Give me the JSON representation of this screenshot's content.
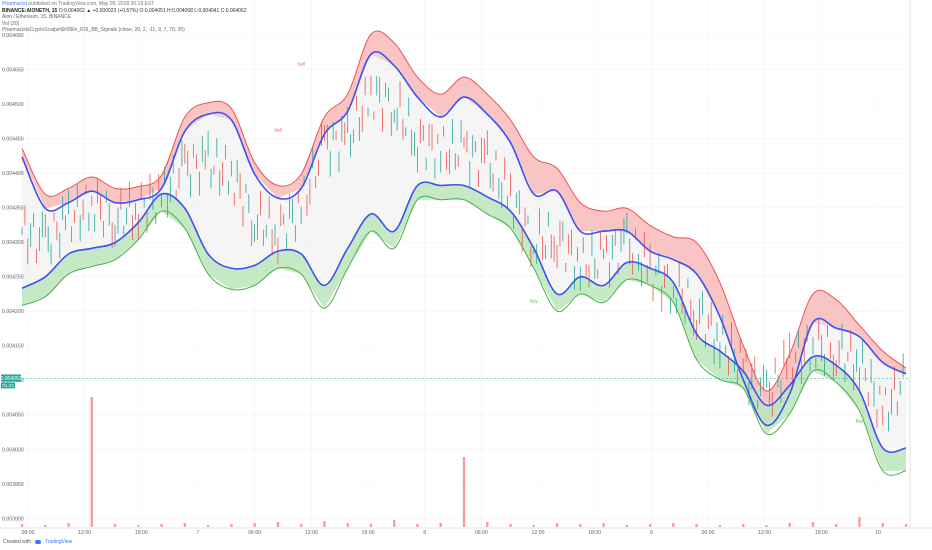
{
  "header": {
    "author": "Pharmacist",
    "published": "published on TradingView.com, May 09, 2018 20:19 EST",
    "symbol": "BINANCE:AIONETH, 15",
    "ohlc": "O:0.004062 ▲ +0.000023 (+0.57%) O:0.004051 H:0.004068 L:0.004041 C:0.004062",
    "pair": "Aion / Ethereum, 15, BINANCE",
    "volume": "Vol (20)",
    "indicator": "PharmacistsCryptoScalper$#05lin_RSI_BB_Signals (close, 20, 2, -11, 9, 7, 70, 35)"
  },
  "footer": {
    "created_with": "Created with",
    "brand": "TradingView"
  },
  "colors": {
    "upper_band": "#ef5350",
    "lower_band": "#4caf50",
    "inner_band": "#3f51f0",
    "band_fill": "#e8e8e8",
    "candle_up": "#26a69a",
    "candle_down": "#ef5350",
    "volume_bar": "#f4a0a0",
    "price_tag": "#26a69a"
  },
  "chart_data": {
    "type": "line",
    "x_ticks": [
      "08:00",
      "12:00",
      "18:00",
      "7",
      "06:00",
      "12:00",
      "18:00",
      "8",
      "06:00",
      "12:00",
      "18:00",
      "9",
      "06:00",
      "12:00",
      "18:00",
      "10"
    ],
    "y_ticks": [
      "0.004680",
      "0.004650",
      "0.004500",
      "0.004450",
      "0.004400",
      "0.004350",
      "0.004300",
      "0.004250",
      "0.004200",
      "0.004150",
      "0.004100",
      "0.004050",
      "0.004000",
      "0.003950",
      "0.003900"
    ],
    "ylim": [
      0.00387,
      0.00469
    ],
    "last_price_tag": "0.004062",
    "countdown_tag": "01:23",
    "signals": [
      {
        "label": "Sell",
        "x_index": 12,
        "price": 0.00461
      },
      {
        "label": "Sell",
        "x_index": 11,
        "price": 0.004495
      },
      {
        "label": "Buy",
        "x_index": 22,
        "price": 0.004195
      },
      {
        "label": "Buy",
        "x_index": 36,
        "price": 0.003985
      }
    ],
    "series": [
      {
        "name": "Upper Band",
        "values": [
          0.004465,
          0.004385,
          0.004395,
          0.004415,
          0.004395,
          0.004398,
          0.004418,
          0.00452,
          0.004545,
          0.004535,
          0.00444,
          0.0044,
          0.00442,
          0.00452,
          0.00456,
          0.004665,
          0.00465,
          0.00459,
          0.00456,
          0.00459,
          0.00456,
          0.004515,
          0.00445,
          0.00443,
          0.00437,
          0.004355,
          0.00436,
          0.00433,
          0.00431,
          0.0043,
          0.00423,
          0.00412,
          0.00404,
          0.004105,
          0.00421,
          0.0042,
          0.004155,
          0.00411,
          0.00408
        ]
      },
      {
        "name": "Basis",
        "values": [
          0.00445,
          0.00436,
          0.00437,
          0.00439,
          0.00437,
          0.004375,
          0.004395,
          0.004495,
          0.004525,
          0.004515,
          0.00442,
          0.004378,
          0.004395,
          0.00449,
          0.00453,
          0.00463,
          0.00461,
          0.004555,
          0.00452,
          0.004555,
          0.004525,
          0.004475,
          0.004385,
          0.00439,
          0.00432,
          0.00432,
          0.00432,
          0.004285,
          0.00427,
          0.004245,
          0.00417,
          0.00406,
          0.00398,
          0.004035,
          0.00416,
          0.00415,
          0.004135,
          0.00409,
          0.00407
        ]
      },
      {
        "name": "Inner Lower",
        "values": [
          0.00422,
          0.00424,
          0.00428,
          0.00429,
          0.0043,
          0.004335,
          0.004385,
          0.00436,
          0.00428,
          0.004255,
          0.00426,
          0.004285,
          0.00428,
          0.004225,
          0.00429,
          0.00435,
          0.00432,
          0.0044,
          0.0044,
          0.0044,
          0.00438,
          0.004355,
          0.00429,
          0.00421,
          0.00424,
          0.004225,
          0.004265,
          0.004255,
          0.00423,
          0.00414,
          0.00411,
          0.004075,
          0.004015,
          0.00405,
          0.0041,
          0.004085,
          0.00404,
          0.00394,
          0.00394
        ]
      },
      {
        "name": "Lower Band",
        "values": [
          0.00419,
          0.004205,
          0.004245,
          0.004258,
          0.00427,
          0.004305,
          0.004355,
          0.004325,
          0.004245,
          0.004218,
          0.004225,
          0.004255,
          0.004245,
          0.004185,
          0.004255,
          0.00432,
          0.00429,
          0.004375,
          0.004375,
          0.004375,
          0.00435,
          0.004325,
          0.004255,
          0.00418,
          0.00421,
          0.004195,
          0.004235,
          0.004225,
          0.004195,
          0.004095,
          0.00406,
          0.004045,
          0.003965,
          0.004,
          0.004075,
          0.004055,
          0.004005,
          0.0039,
          0.0039
        ]
      },
      {
        "name": "Close",
        "values": [
          0.00432,
          0.0043,
          0.00434,
          0.00437,
          0.00434,
          0.00436,
          0.00438,
          0.00443,
          0.00444,
          0.00442,
          0.00434,
          0.00432,
          0.00436,
          0.00447,
          0.00448,
          0.00456,
          0.00454,
          0.00448,
          0.00446,
          0.00446,
          0.00444,
          0.00438,
          0.0043,
          0.00431,
          0.00426,
          0.00427,
          0.0043,
          0.00425,
          0.00422,
          0.00418,
          0.00413,
          0.00408,
          0.00403,
          0.00409,
          0.00412,
          0.00411,
          0.00409,
          0.004,
          0.004062
        ]
      }
    ],
    "volume": [
      3,
      2,
      4,
      130,
      3,
      2,
      3,
      4,
      2,
      3,
      4,
      5,
      3,
      6,
      4,
      3,
      7,
      3,
      4,
      70,
      5,
      3,
      2,
      4,
      3,
      4,
      2,
      3,
      4,
      3,
      2,
      3,
      2,
      4,
      5,
      3,
      10,
      4,
      3
    ]
  }
}
